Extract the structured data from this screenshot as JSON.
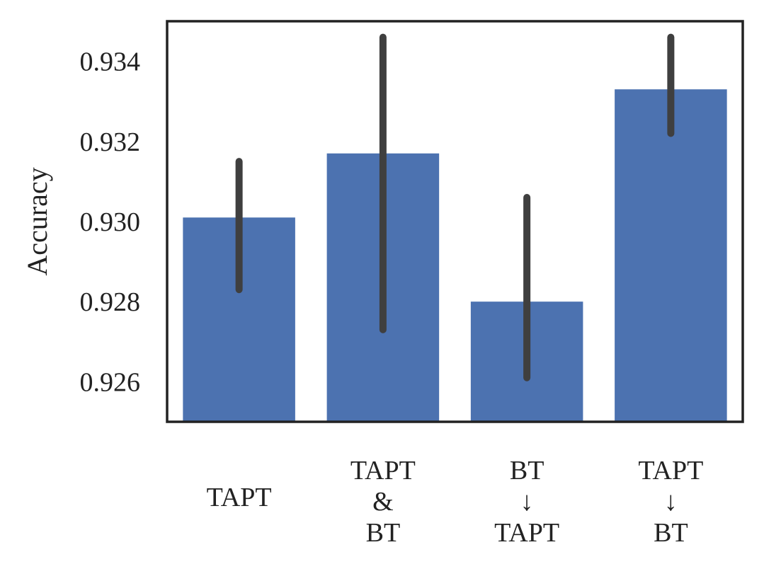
{
  "chart_data": {
    "type": "bar",
    "categories": [
      [
        "TAPT"
      ],
      [
        "TAPT",
        "&",
        "BT"
      ],
      [
        "BT",
        "↓",
        "TAPT"
      ],
      [
        "TAPT",
        "↓",
        "BT"
      ]
    ],
    "values": [
      0.9301,
      0.9317,
      0.928,
      0.9333
    ],
    "error_low": [
      0.9283,
      0.9273,
      0.9261,
      0.9322
    ],
    "error_high": [
      0.9315,
      0.9346,
      0.9306,
      0.9346
    ],
    "ylabel": "Accuracy",
    "xlabel": "",
    "ylim": [
      0.925,
      0.935
    ],
    "yticks": [
      0.926,
      0.928,
      0.93,
      0.932,
      0.934
    ],
    "ytick_labels": [
      "0.926",
      "0.928",
      "0.930",
      "0.932",
      "0.934"
    ],
    "grid": false,
    "bar_color": "#4c72b0",
    "error_color": "#3f3f3f",
    "axis_color": "#222222"
  }
}
